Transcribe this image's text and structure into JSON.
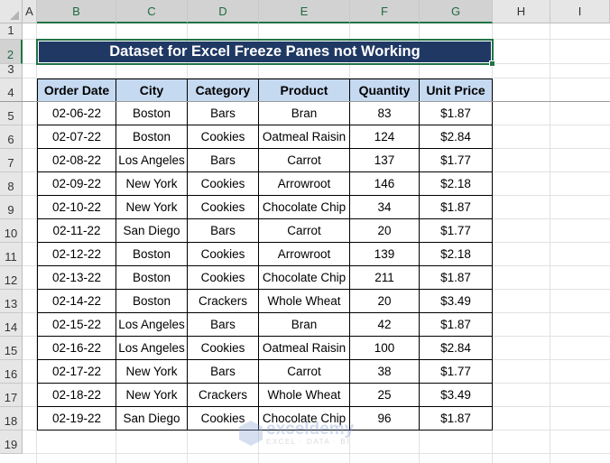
{
  "columns": [
    "A",
    "B",
    "C",
    "D",
    "E",
    "F",
    "G",
    "H",
    "I"
  ],
  "rows": [
    "1",
    "2",
    "3",
    "4",
    "5",
    "6",
    "7",
    "8",
    "9",
    "10",
    "11",
    "12",
    "13",
    "14",
    "15",
    "16",
    "17",
    "18",
    "19"
  ],
  "title": "Dataset for Excel Freeze Panes not Working",
  "headers": [
    "Order Date",
    "City",
    "Category",
    "Product",
    "Quantity",
    "Unit Price"
  ],
  "data": [
    [
      "02-06-22",
      "Boston",
      "Bars",
      "Bran",
      "83",
      "$1.87"
    ],
    [
      "02-07-22",
      "Boston",
      "Cookies",
      "Oatmeal Raisin",
      "124",
      "$2.84"
    ],
    [
      "02-08-22",
      "Los Angeles",
      "Bars",
      "Carrot",
      "137",
      "$1.77"
    ],
    [
      "02-09-22",
      "New York",
      "Cookies",
      "Arrowroot",
      "146",
      "$2.18"
    ],
    [
      "02-10-22",
      "New York",
      "Cookies",
      "Chocolate Chip",
      "34",
      "$1.87"
    ],
    [
      "02-11-22",
      "San Diego",
      "Bars",
      "Carrot",
      "20",
      "$1.77"
    ],
    [
      "02-12-22",
      "Boston",
      "Cookies",
      "Arrowroot",
      "139",
      "$2.18"
    ],
    [
      "02-13-22",
      "Boston",
      "Cookies",
      "Chocolate Chip",
      "211",
      "$1.87"
    ],
    [
      "02-14-22",
      "Boston",
      "Crackers",
      "Whole Wheat",
      "20",
      "$3.49"
    ],
    [
      "02-15-22",
      "Los Angeles",
      "Bars",
      "Bran",
      "42",
      "$1.87"
    ],
    [
      "02-16-22",
      "Los Angeles",
      "Cookies",
      "Oatmeal Raisin",
      "100",
      "$2.84"
    ],
    [
      "02-17-22",
      "New York",
      "Bars",
      "Carrot",
      "38",
      "$1.77"
    ],
    [
      "02-18-22",
      "New York",
      "Crackers",
      "Whole Wheat",
      "25",
      "$3.49"
    ],
    [
      "02-19-22",
      "San Diego",
      "Cookies",
      "Chocolate Chip",
      "96",
      "$1.87"
    ]
  ],
  "watermark": {
    "name": "exceldemy",
    "tagline": "EXCEL · DATA · BI"
  },
  "colors": {
    "title_bg": "#1f3864",
    "header_bg": "#c5d9f1",
    "selection": "#217346"
  }
}
